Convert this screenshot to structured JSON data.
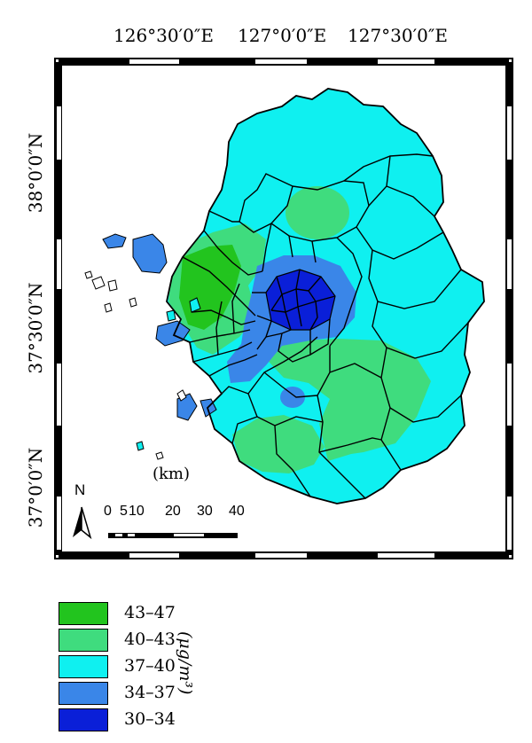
{
  "map": {
    "lon_labels": [
      "126°30′0″E",
      "127°0′0″E",
      "127°30′0″E"
    ],
    "lat_labels": [
      "38°0′0″N",
      "37°30′0″N",
      "37°0′0″N"
    ],
    "north_label": "N",
    "scale_unit": "(km)",
    "scale_ticks": [
      "0",
      "5",
      "10",
      "20",
      "30",
      "40"
    ]
  },
  "legend": {
    "unit": "(μg/m³)",
    "items": [
      {
        "label": "43–47",
        "color": "#22c41e"
      },
      {
        "label": "40–43",
        "color": "#3fdc7e"
      },
      {
        "label": "37–40",
        "color": "#0ff0f0"
      },
      {
        "label": "34–37",
        "color": "#3a86e8"
      },
      {
        "label": "30–34",
        "color": "#0a1fd8"
      }
    ]
  }
}
